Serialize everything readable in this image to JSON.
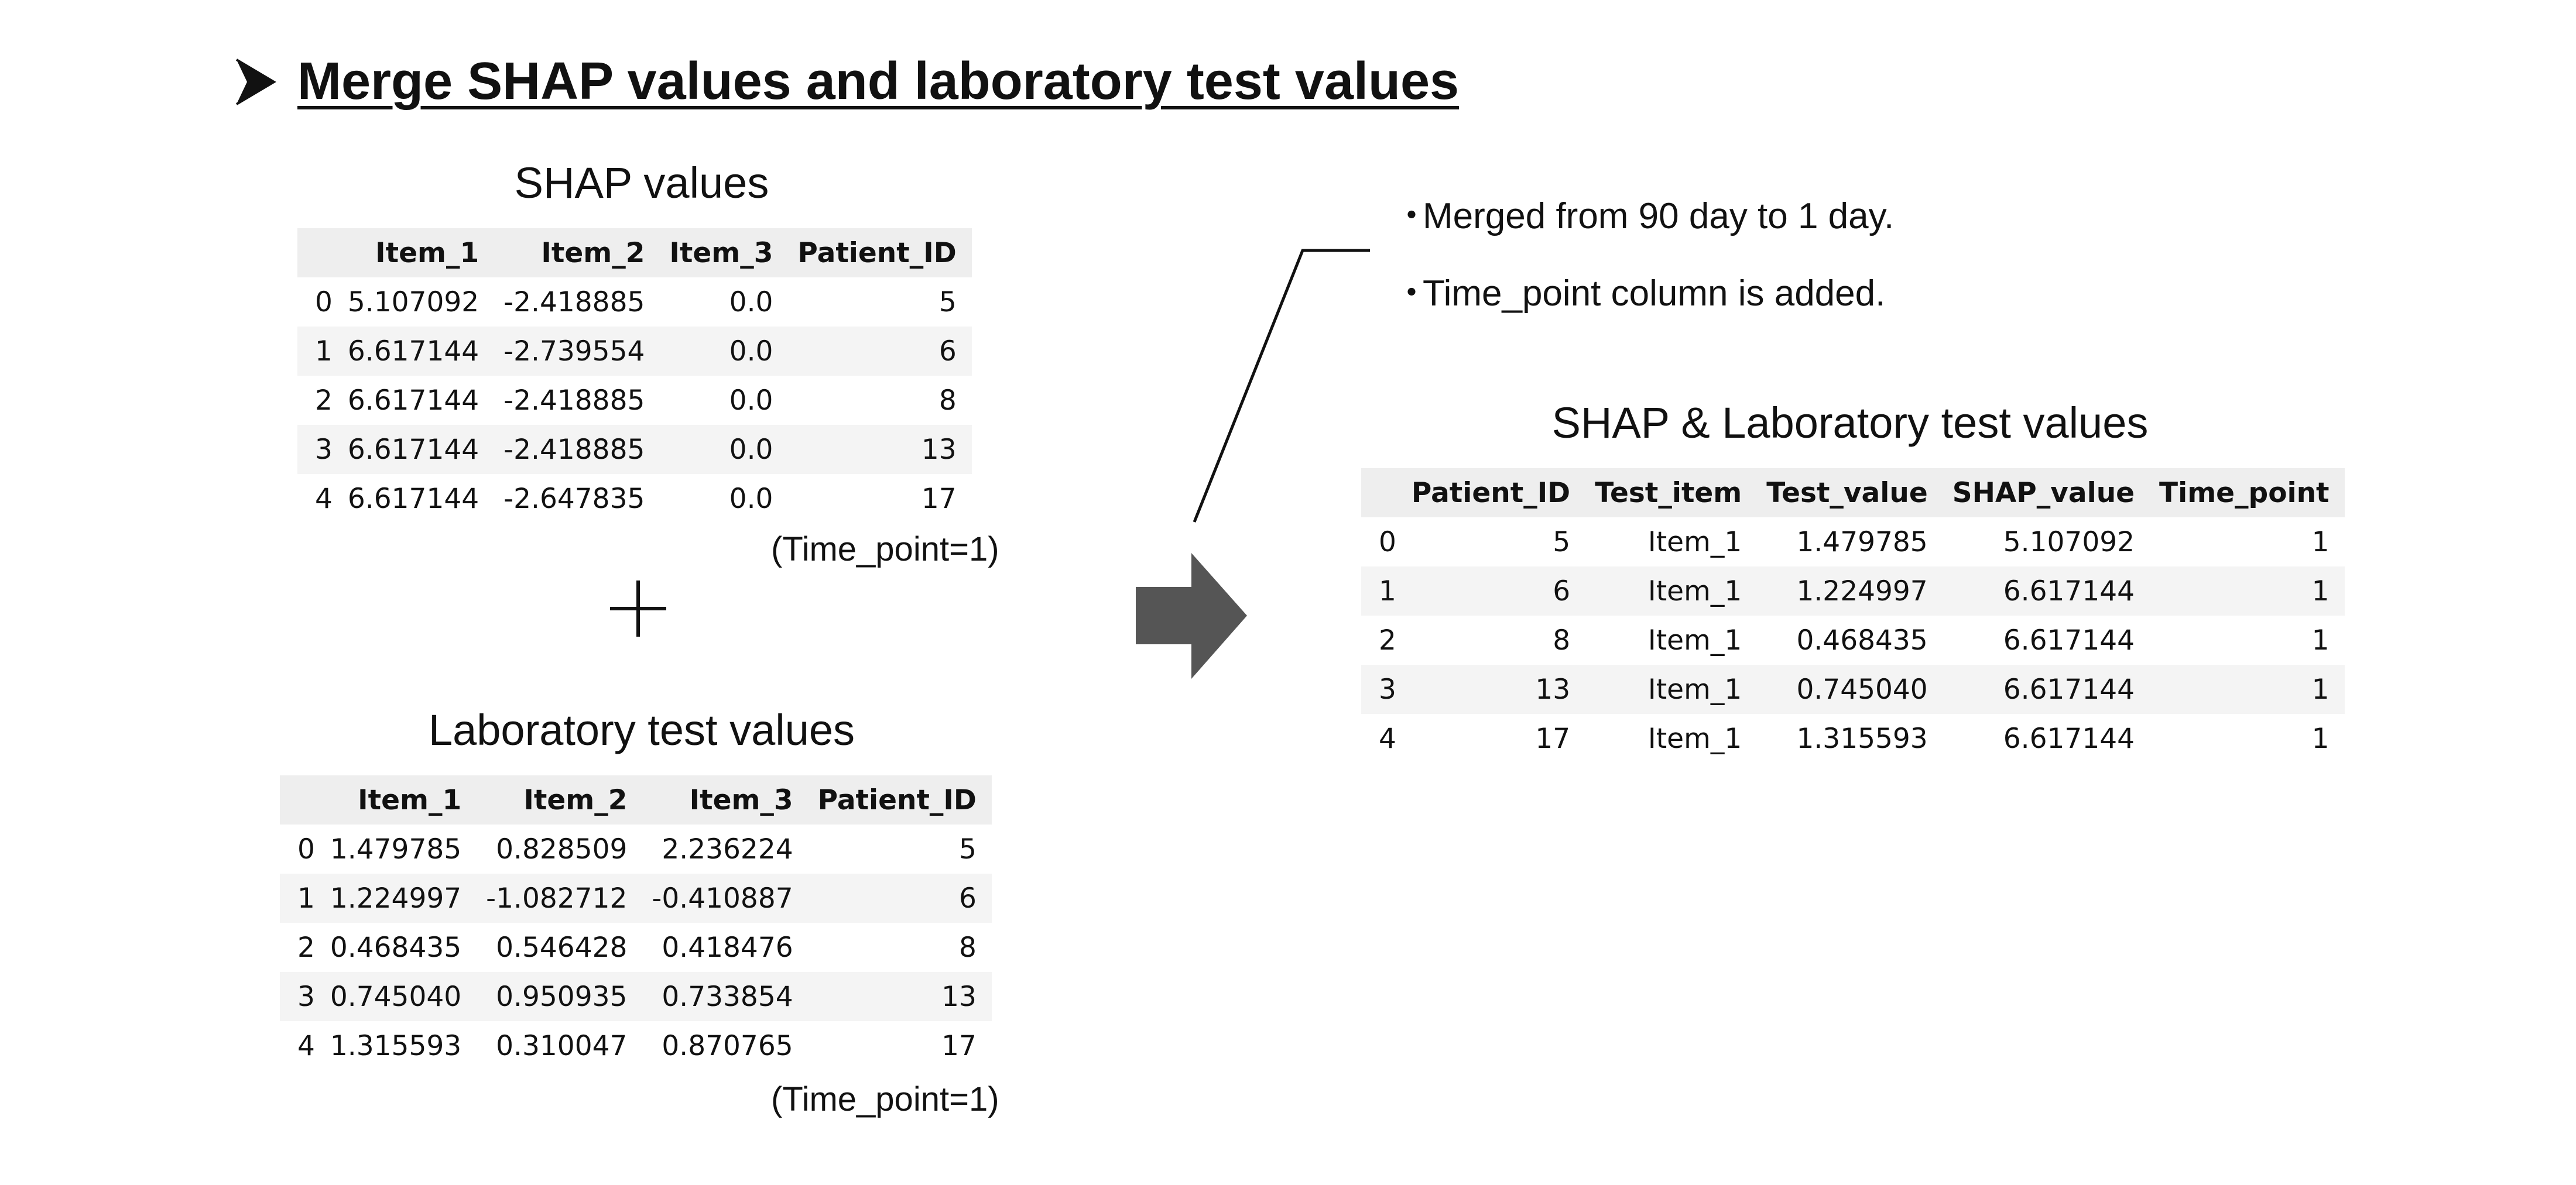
{
  "heading": {
    "marker_icon": "arrowhead-bullet-icon",
    "text": "Merge SHAP values and laboratory test values"
  },
  "shap_table": {
    "title": "SHAP values",
    "columns": [
      "",
      "Item_1",
      "Item_2",
      "Item_3",
      "Patient_ID"
    ],
    "rows": [
      [
        "0",
        "5.107092",
        "-2.418885",
        "0.0",
        "5"
      ],
      [
        "1",
        "6.617144",
        "-2.739554",
        "0.0",
        "6"
      ],
      [
        "2",
        "6.617144",
        "-2.418885",
        "0.0",
        "8"
      ],
      [
        "3",
        "6.617144",
        "-2.418885",
        "0.0",
        "13"
      ],
      [
        "4",
        "6.617144",
        "-2.647835",
        "0.0",
        "17"
      ]
    ],
    "note": "(Time_point=1)"
  },
  "lab_table": {
    "title": "Laboratory test values",
    "columns": [
      "",
      "Item_1",
      "Item_2",
      "Item_3",
      "Patient_ID"
    ],
    "rows": [
      [
        "0",
        "1.479785",
        "0.828509",
        "2.236224",
        "5"
      ],
      [
        "1",
        "1.224997",
        "-1.082712",
        "-0.410887",
        "6"
      ],
      [
        "2",
        "0.468435",
        "0.546428",
        "0.418476",
        "8"
      ],
      [
        "3",
        "0.745040",
        "0.950935",
        "0.733854",
        "13"
      ],
      [
        "4",
        "1.315593",
        "0.310047",
        "0.870765",
        "17"
      ]
    ],
    "note": "(Time_point=1)"
  },
  "operator": {
    "plus_icon": "plus-icon"
  },
  "merge_arrow": {
    "icon": "right-arrow-icon",
    "color": "#555555"
  },
  "callout": {
    "bullets": [
      "Merged from 90 day to 1 day.",
      "Time_point column is added."
    ],
    "bullet_glyph": "・"
  },
  "merged_table": {
    "title": "SHAP & Laboratory test values",
    "columns": [
      "",
      "Patient_ID",
      "Test_item",
      "Test_value",
      "SHAP_value",
      "Time_point"
    ],
    "rows": [
      [
        "0",
        "5",
        "Item_1",
        "1.479785",
        "5.107092",
        "1"
      ],
      [
        "1",
        "6",
        "Item_1",
        "1.224997",
        "6.617144",
        "1"
      ],
      [
        "2",
        "8",
        "Item_1",
        "0.468435",
        "6.617144",
        "1"
      ],
      [
        "3",
        "13",
        "Item_1",
        "0.745040",
        "6.617144",
        "1"
      ],
      [
        "4",
        "17",
        "Item_1",
        "1.315593",
        "6.617144",
        "1"
      ]
    ]
  }
}
